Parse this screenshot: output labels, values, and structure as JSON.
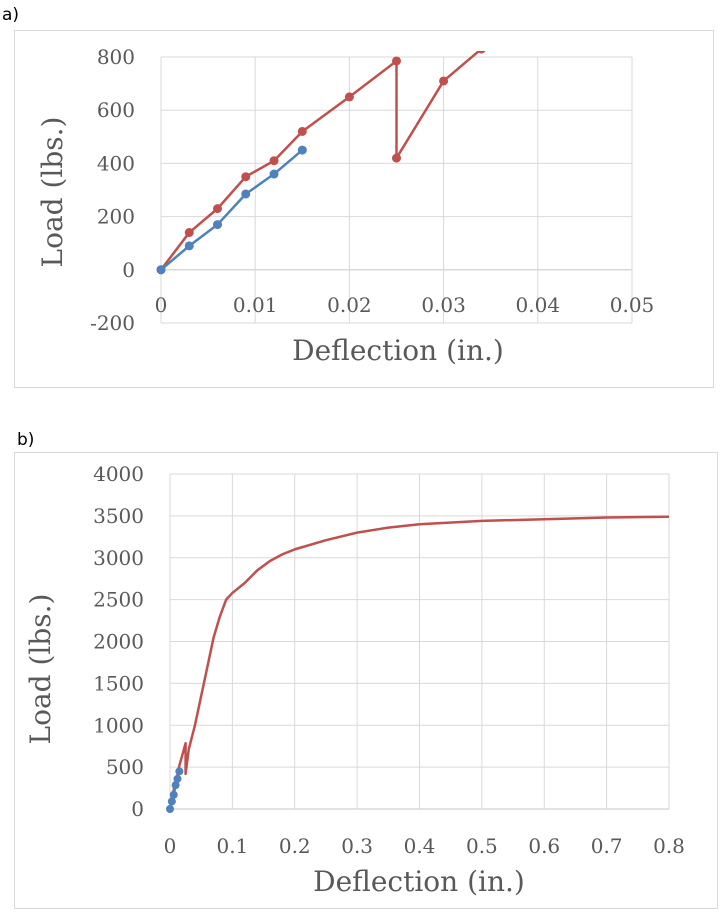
{
  "panels": {
    "a": {
      "label": "a)"
    },
    "b": {
      "label": "b)"
    }
  },
  "colors": {
    "red": "#c0504d",
    "blue": "#4f81bd",
    "grid": "#d9d9d9",
    "text": "#595959"
  },
  "chart_data": [
    {
      "type": "line",
      "panel": "a",
      "xlabel": "Deflection (in.)",
      "ylabel": "Load (lbs.)",
      "xlim": [
        0,
        0.05
      ],
      "ylim": [
        -200,
        800
      ],
      "xticks": [
        0,
        0.01,
        0.02,
        0.03,
        0.04,
        0.05
      ],
      "xtick_labels": [
        "0",
        "0.01",
        "0.02",
        "0.03",
        "0.04",
        "0.05"
      ],
      "yticks": [
        -200,
        0,
        200,
        400,
        600,
        800
      ],
      "ytick_labels": [
        "-200",
        "0",
        "200",
        "400",
        "600",
        "800"
      ],
      "grid": true,
      "series": [
        {
          "name": "red",
          "color": "#c0504d",
          "markers": true,
          "x": [
            0,
            0.003,
            0.006,
            0.009,
            0.012,
            0.015,
            0.02,
            0.025,
            0.025,
            0.03,
            0.034
          ],
          "y": [
            0,
            140,
            230,
            350,
            410,
            520,
            650,
            785,
            420,
            710,
            830
          ]
        },
        {
          "name": "blue",
          "color": "#4f81bd",
          "markers": true,
          "x": [
            0,
            0.003,
            0.006,
            0.009,
            0.012,
            0.015
          ],
          "y": [
            0,
            90,
            170,
            285,
            360,
            450
          ]
        }
      ]
    },
    {
      "type": "line",
      "panel": "b",
      "xlabel": "Deflection (in.)",
      "ylabel": "Load (lbs.)",
      "xlim": [
        0,
        0.8
      ],
      "ylim": [
        0,
        4000
      ],
      "xticks": [
        0,
        0.1,
        0.2,
        0.3,
        0.4,
        0.5,
        0.6,
        0.7,
        0.8
      ],
      "xtick_labels": [
        "0",
        "0.1",
        "0.2",
        "0.3",
        "0.4",
        "0.5",
        "0.6",
        "0.7",
        "0.8"
      ],
      "yticks": [
        0,
        500,
        1000,
        1500,
        2000,
        2500,
        3000,
        3500,
        4000
      ],
      "ytick_labels": [
        "0",
        "500",
        "1000",
        "1500",
        "2000",
        "2500",
        "3000",
        "3500",
        "4000"
      ],
      "grid": true,
      "series": [
        {
          "name": "red",
          "color": "#c0504d",
          "markers": false,
          "x": [
            0,
            0.003,
            0.006,
            0.009,
            0.012,
            0.015,
            0.02,
            0.025,
            0.025,
            0.03,
            0.04,
            0.05,
            0.06,
            0.07,
            0.08,
            0.09,
            0.1,
            0.12,
            0.14,
            0.16,
            0.18,
            0.2,
            0.25,
            0.3,
            0.35,
            0.4,
            0.5,
            0.6,
            0.7,
            0.8
          ],
          "y": [
            0,
            140,
            230,
            350,
            410,
            520,
            650,
            785,
            420,
            710,
            1000,
            1350,
            1700,
            2050,
            2300,
            2500,
            2580,
            2700,
            2850,
            2960,
            3040,
            3100,
            3210,
            3300,
            3360,
            3400,
            3440,
            3460,
            3480,
            3490
          ]
        },
        {
          "name": "blue",
          "color": "#4f81bd",
          "markers": true,
          "x": [
            0,
            0.003,
            0.006,
            0.009,
            0.012,
            0.015
          ],
          "y": [
            0,
            90,
            170,
            285,
            360,
            450
          ]
        }
      ]
    }
  ]
}
